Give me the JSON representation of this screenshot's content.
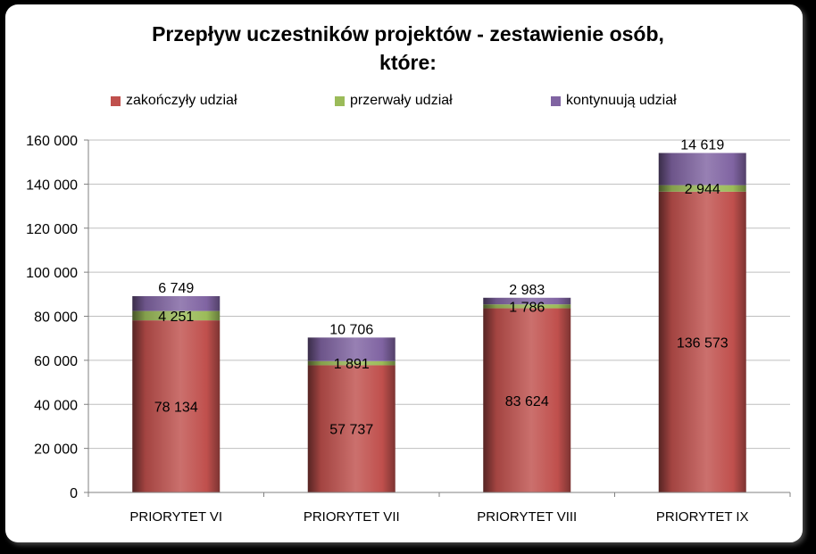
{
  "chart_data": {
    "type": "bar",
    "stacked": true,
    "title_line1": "Przepływ uczestników projektów - zestawienie osób,",
    "title_line2": "które:",
    "categories": [
      "PRIORYTET VI",
      "PRIORYTET VII",
      "PRIORYTET VIII",
      "PRIORYTET IX"
    ],
    "series": [
      {
        "name": "zakończyły udział",
        "color": "#c0504d",
        "values": [
          78134,
          57737,
          83624,
          136573
        ],
        "labels": [
          "78 134",
          "57 737",
          "83 624",
          "136 573"
        ]
      },
      {
        "name": "przerwały udział",
        "color": "#9bbb59",
        "values": [
          4251,
          1891,
          1786,
          2944
        ],
        "labels": [
          "4 251",
          "1 891",
          "1 786",
          "2 944"
        ]
      },
      {
        "name": "kontynuują udział",
        "color": "#8064a2",
        "values": [
          6749,
          10706,
          2983,
          14619
        ],
        "labels": [
          "6 749",
          "10 706",
          "2 983",
          "14 619"
        ]
      }
    ],
    "ylim": [
      0,
      160000
    ],
    "yticks": [
      "0",
      "20 000",
      "40 000",
      "60 000",
      "80 000",
      "100 000",
      "120 000",
      "140 000",
      "160 000"
    ],
    "grid": true,
    "legend_position": "top"
  }
}
